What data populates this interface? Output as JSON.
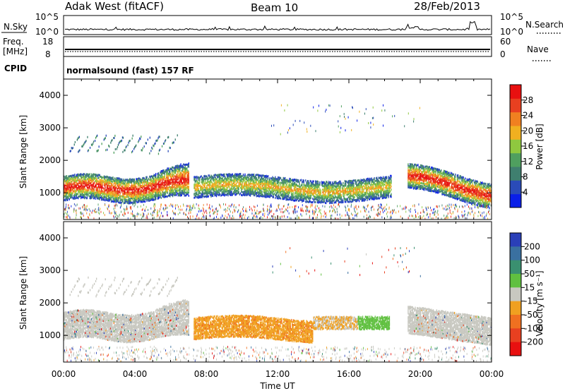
{
  "header": {
    "radar": "Adak West (fitACF)",
    "beam": "Beam 10",
    "date": "28/Feb/2013"
  },
  "summary": {
    "noise_left_label": "N.Sky",
    "noise_right_label": "N.Search",
    "noise_ticks_left": [
      "10^5",
      "10^0"
    ],
    "noise_ticks_right": [
      "10^5",
      "10^0"
    ],
    "freq_label": [
      "Freq.",
      "[MHz]"
    ],
    "freq_ticks": [
      "18",
      "8"
    ],
    "nave_label": "Nave",
    "nave_ticks": [
      "60",
      "0"
    ],
    "cpid_label": "CPID",
    "cpid_text": "normalsound (fast) 157 RF"
  },
  "chart_data": [
    {
      "type": "heatmap",
      "panel": "power",
      "ylabel": "Slant Range [km]",
      "yticks": [
        "1000",
        "2000",
        "3000",
        "4000"
      ],
      "ylim": [
        180,
        4500
      ],
      "xlabel": "Time UT",
      "xticks": [
        "00:00",
        "04:00",
        "08:00",
        "12:00",
        "16:00",
        "20:00",
        "00:00"
      ],
      "xlim_hours": [
        0,
        24
      ],
      "colorbar": {
        "label": "Power [dB]",
        "ticks": [
          "4",
          "8",
          "12",
          "16",
          "20",
          "24",
          "28"
        ],
        "range": [
          0,
          30
        ],
        "colors": [
          "#0a1fe8",
          "#2a4bb8",
          "#3f7f6f",
          "#4f9f5f",
          "#8fc83f",
          "#f0b020",
          "#f08020",
          "#e84020",
          "#e81010"
        ]
      },
      "features": [
        {
          "name": "main band",
          "t_start": 0.0,
          "t_end": 7.0,
          "range_km": [
            900,
            1600
          ],
          "power_db": [
            8,
            30
          ]
        },
        {
          "name": "upper striations",
          "t_start": 0.3,
          "t_end": 6.3,
          "range_km": [
            2100,
            2800
          ],
          "power_db": [
            4,
            12
          ]
        },
        {
          "name": "daytime band",
          "t_start": 7.2,
          "t_end": 18.5,
          "range_km": [
            900,
            1900
          ],
          "power_db": [
            4,
            20
          ]
        },
        {
          "name": "evening band",
          "t_start": 19.2,
          "t_end": 24.0,
          "range_km": [
            900,
            2000
          ],
          "power_db": [
            8,
            30
          ]
        }
      ]
    },
    {
      "type": "heatmap",
      "panel": "velocity",
      "ylabel": "Slant Range [km]",
      "yticks": [
        "1000",
        "2000",
        "3000",
        "4000"
      ],
      "ylim": [
        180,
        4500
      ],
      "xlabel": "Time UT",
      "xticks": [
        "00:00",
        "04:00",
        "08:00",
        "12:00",
        "16:00",
        "20:00",
        "00:00"
      ],
      "xlim_hours": [
        0,
        24
      ],
      "colorbar": {
        "label": "Velocity [m s⁻¹]",
        "ticks": [
          "200",
          "100",
          "50",
          "15",
          "-15",
          "-50",
          "-100",
          "-200"
        ],
        "colors": [
          "#2a3fb8",
          "#3a70a0",
          "#3a9070",
          "#60c040",
          "#c8c8c0",
          "#f0a020",
          "#f07020",
          "#e84020",
          "#e81010"
        ]
      },
      "features": [
        {
          "name": "ground scatter",
          "t_start": 0.0,
          "t_end": 7.0,
          "range_km": [
            900,
            1900
          ],
          "velocity": [
            -15,
            15
          ]
        },
        {
          "name": "daytime negative flow",
          "t_start": 7.2,
          "t_end": 14.0,
          "range_km": [
            900,
            1800
          ],
          "velocity": [
            -100,
            -50
          ]
        },
        {
          "name": "daytime mixed flow",
          "t_start": 14.0,
          "t_end": 18.5,
          "range_km": [
            1200,
            1600
          ],
          "velocity": [
            -50,
            50
          ]
        },
        {
          "name": "evening ground scatter",
          "t_start": 19.2,
          "t_end": 24.0,
          "range_km": [
            900,
            1900
          ],
          "velocity": [
            -15,
            15
          ]
        }
      ]
    }
  ]
}
